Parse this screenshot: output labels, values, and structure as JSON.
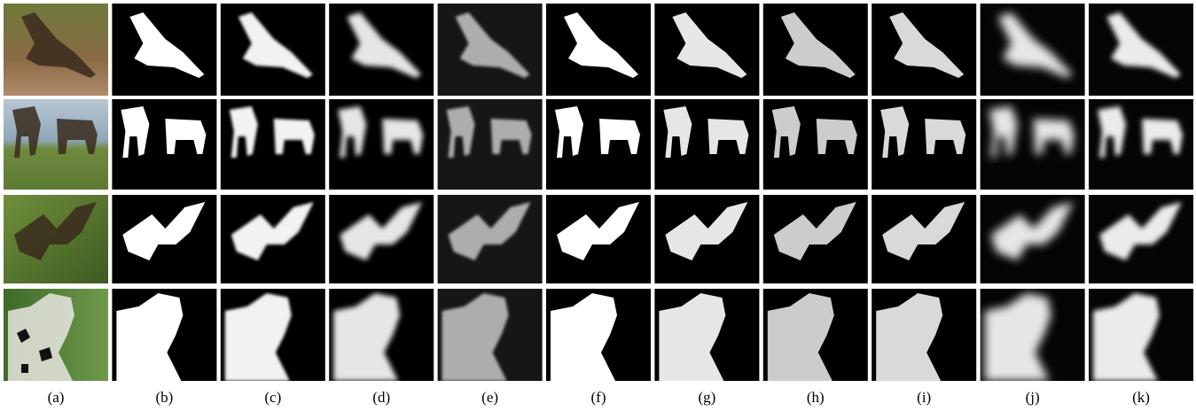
{
  "labels": [
    "(a)",
    "(b)",
    "(c)",
    "(d)",
    "(e)",
    "(f)",
    "(g)",
    "(h)",
    "(i)",
    "(j)",
    "(k)"
  ]
}
